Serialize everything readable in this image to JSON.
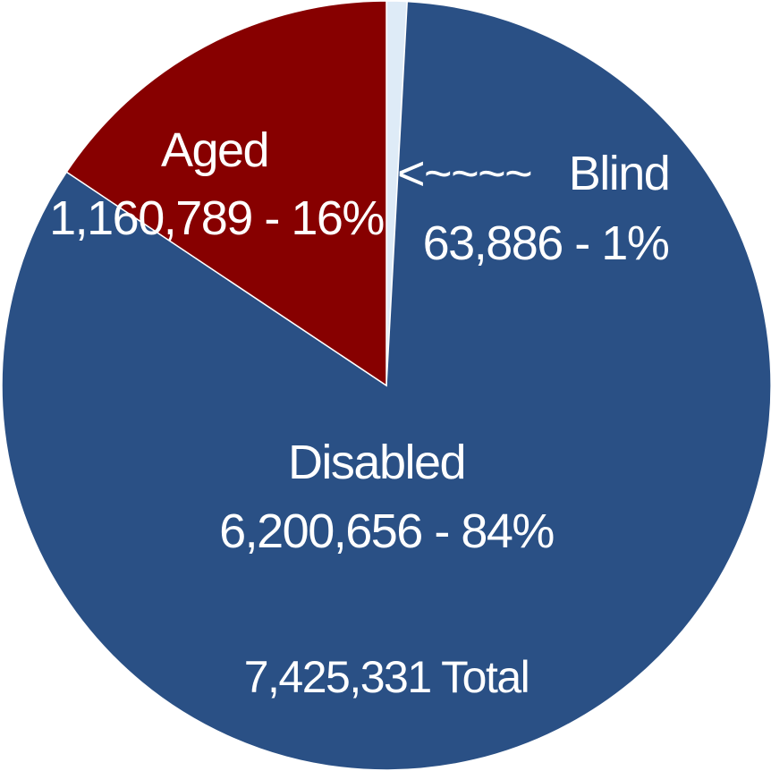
{
  "chart_data": {
    "type": "pie",
    "slices": [
      {
        "label": "Blind",
        "value": 63886,
        "value_text": "63,886 - 1%",
        "percent": 1,
        "color": "#DEEBF7"
      },
      {
        "label": "Disabled",
        "value": 6200656,
        "value_text": "6,200,656 - 84%",
        "percent": 84,
        "color": "#2A5085"
      },
      {
        "label": "Aged",
        "value": 1160789,
        "value_text": "1,160,789 - 16%",
        "percent": 16,
        "color": "#870000"
      }
    ],
    "blind_pointer": "<~~~~",
    "total_text": "7,425,331 Total",
    "label_color": "#FFFFFF",
    "start_angle_deg": 0,
    "direction": "clockwise"
  }
}
